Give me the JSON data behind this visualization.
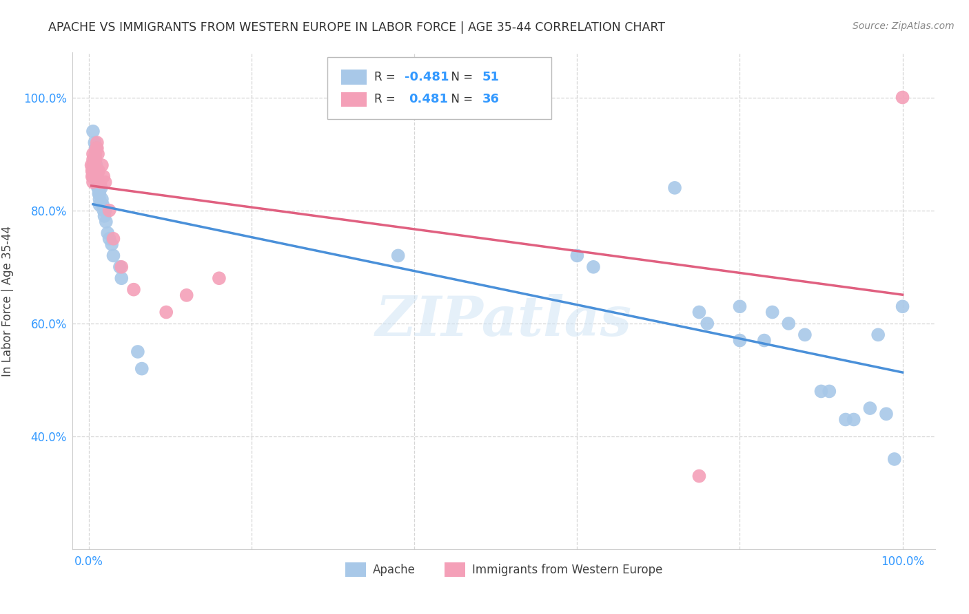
{
  "title": "APACHE VS IMMIGRANTS FROM WESTERN EUROPE IN LABOR FORCE | AGE 35-44 CORRELATION CHART",
  "source": "Source: ZipAtlas.com",
  "ylabel": "In Labor Force | Age 35-44",
  "watermark": "ZIPatlas",
  "legend1_r": "-0.481",
  "legend1_n": "51",
  "legend2_r": "0.481",
  "legend2_n": "36",
  "xlim": [
    -0.02,
    1.04
  ],
  "ylim": [
    0.2,
    1.08
  ],
  "xticks": [
    0.0,
    0.2,
    0.4,
    0.6,
    0.8,
    1.0
  ],
  "xtick_labels_show": [
    "0.0%",
    "",
    "",
    "",
    "",
    "100.0%"
  ],
  "ytick_positions": [
    0.4,
    0.6,
    0.8,
    1.0
  ],
  "ytick_labels": [
    "40.0%",
    "60.0%",
    "80.0%",
    "100.0%"
  ],
  "blue_color": "#a8c8e8",
  "pink_color": "#f4a0b8",
  "blue_line_color": "#4a90d9",
  "pink_line_color": "#e06080",
  "apache_x": [
    0.005,
    0.007,
    0.008,
    0.008,
    0.009,
    0.01,
    0.01,
    0.01,
    0.011,
    0.011,
    0.012,
    0.012,
    0.013,
    0.013,
    0.013,
    0.015,
    0.016,
    0.017,
    0.018,
    0.019,
    0.02,
    0.021,
    0.023,
    0.025,
    0.028,
    0.03,
    0.038,
    0.04,
    0.06,
    0.065,
    0.38,
    0.6,
    0.62,
    0.72,
    0.75,
    0.76,
    0.8,
    0.8,
    0.83,
    0.84,
    0.86,
    0.88,
    0.9,
    0.91,
    0.93,
    0.94,
    0.96,
    0.97,
    0.98,
    0.99,
    1.0
  ],
  "apache_y": [
    0.94,
    0.92,
    0.91,
    0.89,
    0.88,
    0.87,
    0.86,
    0.85,
    0.85,
    0.84,
    0.84,
    0.83,
    0.83,
    0.82,
    0.81,
    0.84,
    0.82,
    0.81,
    0.8,
    0.79,
    0.8,
    0.78,
    0.76,
    0.75,
    0.74,
    0.72,
    0.7,
    0.68,
    0.55,
    0.52,
    0.72,
    0.72,
    0.7,
    0.84,
    0.62,
    0.6,
    0.63,
    0.57,
    0.57,
    0.62,
    0.6,
    0.58,
    0.48,
    0.48,
    0.43,
    0.43,
    0.45,
    0.58,
    0.44,
    0.36,
    0.63
  ],
  "immigrants_x": [
    0.003,
    0.004,
    0.004,
    0.004,
    0.005,
    0.005,
    0.005,
    0.005,
    0.005,
    0.005,
    0.006,
    0.006,
    0.006,
    0.007,
    0.007,
    0.007,
    0.008,
    0.008,
    0.009,
    0.01,
    0.01,
    0.011,
    0.012,
    0.014,
    0.016,
    0.018,
    0.02,
    0.025,
    0.03,
    0.04,
    0.055,
    0.095,
    0.12,
    0.16,
    0.75,
    1.0
  ],
  "immigrants_y": [
    0.88,
    0.87,
    0.87,
    0.86,
    0.9,
    0.89,
    0.88,
    0.87,
    0.86,
    0.85,
    0.88,
    0.87,
    0.86,
    0.89,
    0.88,
    0.87,
    0.9,
    0.89,
    0.91,
    0.92,
    0.91,
    0.9,
    0.87,
    0.85,
    0.88,
    0.86,
    0.85,
    0.8,
    0.75,
    0.7,
    0.66,
    0.62,
    0.65,
    0.68,
    0.33,
    1.0
  ]
}
